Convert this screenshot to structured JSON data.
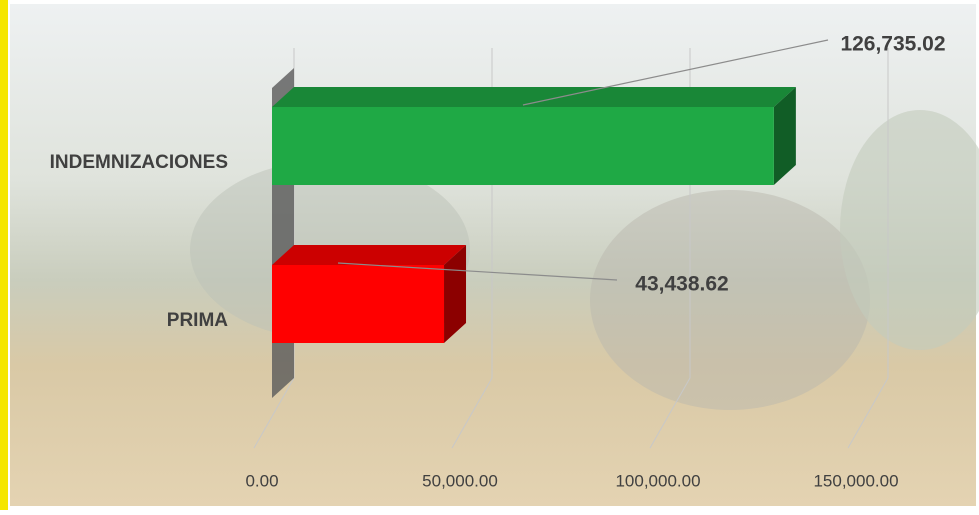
{
  "chart_data": {
    "type": "bar3d",
    "orientation": "horizontal",
    "categories": [
      "INDEMNIZACIONES",
      "PRIMA"
    ],
    "values": [
      126735.02,
      43438.62
    ],
    "value_labels": [
      "126,735.02",
      "43,438.62"
    ],
    "colors": [
      "#1fa945",
      "#ff0000"
    ],
    "xlim": [
      0,
      150000
    ],
    "xticks": [
      {
        "value": 0,
        "label": "0.00"
      },
      {
        "value": 50000,
        "label": "50,000.00"
      },
      {
        "value": 100000,
        "label": "100,000.00"
      },
      {
        "value": 150000,
        "label": "150,000.00"
      }
    ],
    "grid": true
  }
}
